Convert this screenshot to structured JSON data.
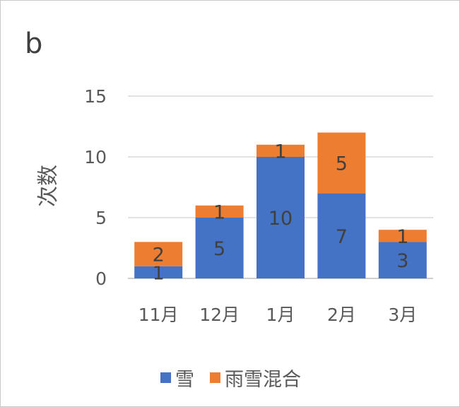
{
  "panel_label": "b",
  "colors": {
    "snow": "#4472C4",
    "mixed": "#ED7D31",
    "grid": "#d9d9d9",
    "text": "#595959"
  },
  "chart_data": {
    "type": "bar",
    "stacked": true,
    "title": "",
    "xlabel": "",
    "ylabel": "次数",
    "ylim": [
      0,
      15
    ],
    "yticks": [
      0,
      5,
      10,
      15
    ],
    "grid": true,
    "legend_position": "bottom",
    "categories": [
      "11月",
      "12月",
      "1月",
      "2月",
      "3月"
    ],
    "series": [
      {
        "name": "雪",
        "values": [
          1,
          5,
          10,
          7,
          3
        ]
      },
      {
        "name": "雨雪混合",
        "values": [
          2,
          1,
          1,
          5,
          1
        ]
      }
    ]
  }
}
